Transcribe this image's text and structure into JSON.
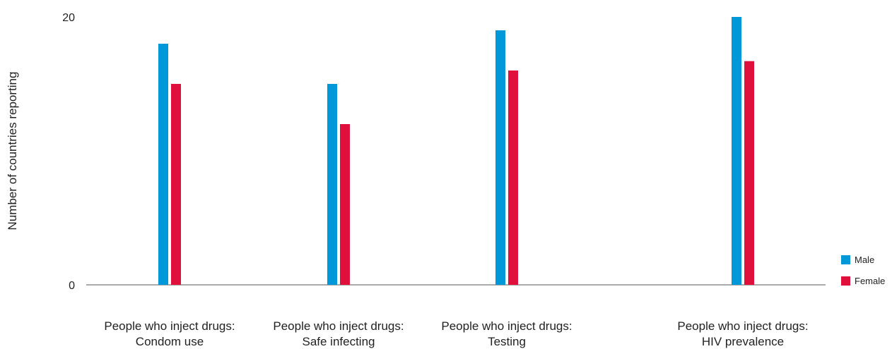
{
  "chart_data": {
    "type": "bar",
    "ylabel": "Number of countries reporting",
    "ylim": [
      0,
      20
    ],
    "yticks": [
      "0",
      "20"
    ],
    "categories": [
      [
        "People who inject drugs:",
        "Condom use"
      ],
      [
        "People who inject drugs:",
        "Safe infecting"
      ],
      [
        "People who inject drugs:",
        "Testing"
      ],
      [
        "People who inject drugs:",
        "HIV prevalence"
      ]
    ],
    "series": [
      {
        "name": "Male",
        "color": "#0098d8",
        "values": [
          18,
          15,
          19,
          20
        ]
      },
      {
        "name": "Female",
        "color": "#e0103c",
        "values": [
          15,
          12,
          16,
          16.7
        ]
      }
    ],
    "legend": {
      "position": "bottom-right"
    },
    "grid": false
  }
}
